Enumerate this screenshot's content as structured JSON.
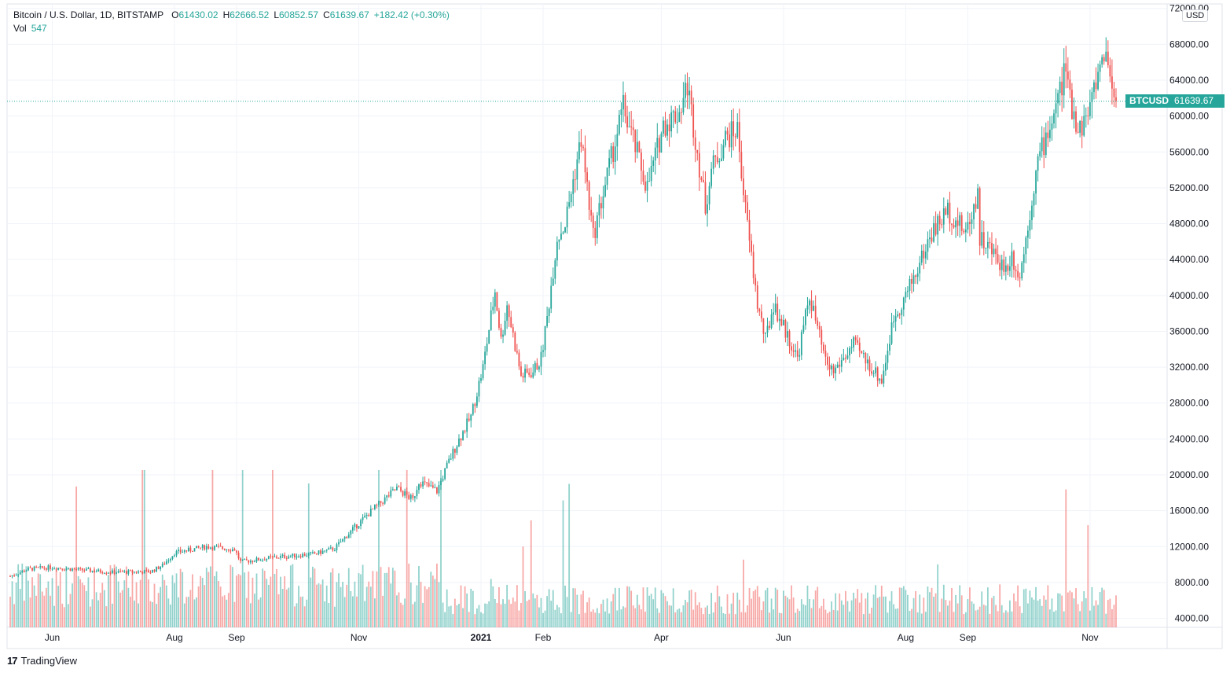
{
  "legend": {
    "title": "Bitcoin / U.S. Dollar, 1D, BITSTAMP",
    "open_label": "O",
    "open": "61430.02",
    "high_label": "H",
    "high": "62666.52",
    "low_label": "L",
    "low": "60852.57",
    "close_label": "C",
    "close": "61639.67",
    "change": "+182.42 (+0.30%)",
    "vol_label": "Vol",
    "vol": "547"
  },
  "currency_badge": "USD",
  "ticker_tag": "BTCUSD",
  "last_price_tag": "61639.67",
  "footer": {
    "logo_mark": "17",
    "brand": "TradingView"
  },
  "colors": {
    "up": "#26a69a",
    "down": "#ef5350",
    "grid": "#f0f3fa",
    "axis": "#e0e3eb",
    "text": "#131722"
  },
  "chart_data": {
    "type": "candlestick",
    "title": "Bitcoin / U.S. Dollar, 1D, BITSTAMP",
    "ylim": [
      3000,
      72500
    ],
    "y_ticks": [
      4000,
      8000,
      12000,
      16000,
      20000,
      24000,
      28000,
      32000,
      36000,
      40000,
      44000,
      48000,
      52000,
      56000,
      60000,
      64000,
      68000,
      72000
    ],
    "y_tick_labels": [
      "4000.00",
      "8000.00",
      "12000.00",
      "16000.00",
      "20000.00",
      "24000.00",
      "28000.00",
      "32000.00",
      "36000.00",
      "40000.00",
      "44000.00",
      "48000.00",
      "52000.00",
      "56000.00",
      "60000.00",
      "64000.00",
      "68000.00",
      "72000.00"
    ],
    "x_start": "2020-05-11",
    "x_end": "2021-11-14",
    "x_ticks": [
      {
        "label": "Jun",
        "date": "2020-06-01"
      },
      {
        "label": "Aug",
        "date": "2020-08-01"
      },
      {
        "label": "Sep",
        "date": "2020-09-01"
      },
      {
        "label": "Nov",
        "date": "2020-11-01"
      },
      {
        "label": "2021",
        "date": "2021-01-01"
      },
      {
        "label": "Feb",
        "date": "2021-02-01"
      },
      {
        "label": "Apr",
        "date": "2021-04-01"
      },
      {
        "label": "Jun",
        "date": "2021-06-01"
      },
      {
        "label": "Aug",
        "date": "2021-08-01"
      },
      {
        "label": "Sep",
        "date": "2021-09-01"
      },
      {
        "label": "Nov",
        "date": "2021-11-01"
      }
    ],
    "price_path": [
      [
        "2020-05-11",
        8700
      ],
      [
        "2020-05-20",
        9500
      ],
      [
        "2020-06-01",
        9700
      ],
      [
        "2020-06-15",
        9400
      ],
      [
        "2020-07-01",
        9150
      ],
      [
        "2020-07-20",
        9200
      ],
      [
        "2020-07-26",
        9900
      ],
      [
        "2020-08-01",
        11300
      ],
      [
        "2020-08-17",
        12000
      ],
      [
        "2020-08-31",
        11700
      ],
      [
        "2020-09-03",
        10300
      ],
      [
        "2020-09-20",
        10800
      ],
      [
        "2020-10-10",
        11200
      ],
      [
        "2020-10-20",
        11800
      ],
      [
        "2020-10-25",
        13000
      ],
      [
        "2020-11-05",
        15500
      ],
      [
        "2020-11-20",
        18500
      ],
      [
        "2020-11-28",
        17200
      ],
      [
        "2020-12-01",
        19300
      ],
      [
        "2020-12-10",
        18200
      ],
      [
        "2020-12-16",
        21500
      ],
      [
        "2020-12-20",
        23500
      ],
      [
        "2020-12-27",
        26500
      ],
      [
        "2021-01-02",
        32000
      ],
      [
        "2021-01-08",
        40500
      ],
      [
        "2021-01-11",
        35000
      ],
      [
        "2021-01-14",
        39000
      ],
      [
        "2021-01-21",
        31000
      ],
      [
        "2021-01-27",
        31500
      ],
      [
        "2021-01-31",
        33000
      ],
      [
        "2021-02-03",
        37500
      ],
      [
        "2021-02-08",
        46500
      ],
      [
        "2021-02-12",
        48000
      ],
      [
        "2021-02-20",
        57500
      ],
      [
        "2021-02-26",
        46500
      ],
      [
        "2021-03-01",
        49500
      ],
      [
        "2021-03-13",
        61000
      ],
      [
        "2021-03-25",
        52000
      ],
      [
        "2021-04-02",
        59000
      ],
      [
        "2021-04-10",
        60500
      ],
      [
        "2021-04-14",
        63500
      ],
      [
        "2021-04-23",
        50000
      ],
      [
        "2021-04-26",
        54000
      ],
      [
        "2021-05-03",
        57500
      ],
      [
        "2021-05-09",
        58500
      ],
      [
        "2021-05-13",
        49500
      ],
      [
        "2021-05-19",
        39000
      ],
      [
        "2021-05-23",
        35000
      ],
      [
        "2021-05-27",
        39000
      ],
      [
        "2021-06-08",
        33000
      ],
      [
        "2021-06-14",
        40000
      ],
      [
        "2021-06-22",
        32500
      ],
      [
        "2021-06-26",
        31500
      ],
      [
        "2021-07-06",
        34500
      ],
      [
        "2021-07-20",
        30500
      ],
      [
        "2021-07-26",
        37500
      ],
      [
        "2021-08-01",
        40000
      ],
      [
        "2021-08-06",
        42500
      ],
      [
        "2021-08-14",
        47000
      ],
      [
        "2021-08-22",
        49500
      ],
      [
        "2021-08-31",
        47000
      ],
      [
        "2021-09-06",
        51500
      ],
      [
        "2021-09-07",
        46500
      ],
      [
        "2021-09-20",
        43000
      ],
      [
        "2021-09-23",
        44500
      ],
      [
        "2021-09-27",
        42000
      ],
      [
        "2021-10-01",
        48000
      ],
      [
        "2021-10-06",
        55000
      ],
      [
        "2021-10-15",
        61000
      ],
      [
        "2021-10-20",
        65500
      ],
      [
        "2021-10-22",
        61500
      ],
      [
        "2021-10-27",
        58500
      ],
      [
        "2021-11-01",
        61000
      ],
      [
        "2021-11-08",
        67500
      ],
      [
        "2021-11-11",
        64800
      ],
      [
        "2021-11-14",
        61639.67
      ]
    ],
    "last_close": 61639.67,
    "volume_series_name": "Vol",
    "volume_last": 547
  }
}
